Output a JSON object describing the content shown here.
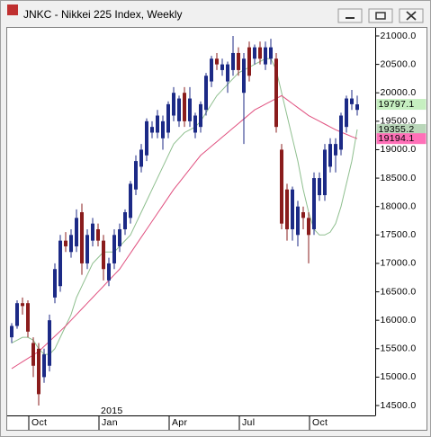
{
  "chart_data": {
    "type": "candlestick",
    "title": "JNKC - Nikkei 225 Index, Weekly",
    "categories": [
      null,
      null,
      null,
      null,
      "Oct",
      null,
      null,
      null,
      null,
      null,
      null,
      null,
      null,
      null,
      null,
      null,
      null,
      "Jan",
      null,
      null,
      null,
      null,
      null,
      null,
      null,
      null,
      null,
      null,
      null,
      null,
      "Apr",
      null,
      null,
      null,
      null,
      null,
      null,
      null,
      null,
      null,
      null,
      null,
      null,
      "Jul",
      null,
      null,
      null,
      null,
      null,
      null,
      null,
      null,
      null,
      null,
      null,
      null,
      "Oct",
      null,
      null,
      null,
      null,
      null,
      null,
      null,
      null
    ],
    "year_label": "2015",
    "year_label_at": 17,
    "open": [
      15700,
      15900,
      16300,
      16300,
      15600,
      15500,
      15000,
      15200,
      16400,
      16600,
      17400,
      17200,
      17300,
      17900,
      17000,
      17400,
      17600,
      17400,
      16700,
      17000,
      17300,
      17600,
      17800,
      18300,
      18700,
      18900,
      19300,
      19300,
      19200,
      19300,
      19600,
      19500,
      20000,
      19500,
      19300,
      19400,
      19700,
      20200,
      20600,
      20400,
      20200,
      20400,
      20700,
      20000,
      20800,
      20600,
      20800,
      20500,
      20600,
      20600,
      19000,
      18300,
      17600,
      17500,
      17900,
      17800,
      17600,
      18200,
      18200,
      18700,
      18900,
      19000,
      19400,
      19800,
      19700
    ],
    "high": [
      15950,
      16350,
      16400,
      16350,
      15700,
      15600,
      15500,
      16100,
      17000,
      17500,
      17550,
      17600,
      17950,
      18050,
      17600,
      17800,
      17700,
      17500,
      17100,
      17600,
      17700,
      17950,
      18450,
      18900,
      19100,
      19550,
      19500,
      19700,
      19600,
      19850,
      20100,
      19950,
      20100,
      20100,
      19650,
      19850,
      20350,
      20650,
      20700,
      20600,
      20550,
      21000,
      20800,
      20700,
      20900,
      20850,
      20900,
      20900,
      20950,
      20700,
      19100,
      18400,
      18350,
      18100,
      18000,
      17900,
      18600,
      18600,
      19100,
      19200,
      19200,
      19650,
      19950,
      20050,
      19950
    ],
    "low": [
      15600,
      15850,
      16100,
      15700,
      15000,
      14500,
      14900,
      15100,
      16300,
      16500,
      17200,
      17100,
      17200,
      16800,
      16900,
      17300,
      17300,
      16700,
      16600,
      16900,
      17200,
      17500,
      17700,
      18200,
      18600,
      18800,
      19200,
      19200,
      19000,
      19200,
      19500,
      19400,
      19400,
      19400,
      19200,
      19300,
      19600,
      20100,
      20400,
      20300,
      20000,
      20300,
      20300,
      19100,
      20200,
      20500,
      20500,
      20400,
      20500,
      19300,
      17600,
      17400,
      17400,
      17300,
      17600,
      17000,
      17500,
      18100,
      18100,
      18600,
      18600,
      18900,
      19300,
      19700,
      19600
    ],
    "close": [
      15900,
      16300,
      16250,
      15800,
      15200,
      14700,
      15400,
      16000,
      16900,
      17400,
      17300,
      17500,
      17800,
      17000,
      17500,
      17700,
      17400,
      16900,
      17000,
      17500,
      17600,
      17900,
      18400,
      18800,
      19000,
      19500,
      19400,
      19600,
      19500,
      19800,
      20000,
      19900,
      19500,
      19900,
      19600,
      19800,
      20300,
      20600,
      20500,
      20500,
      20500,
      20700,
      20400,
      20600,
      20300,
      20800,
      20600,
      20800,
      20800,
      19400,
      17700,
      17600,
      18300,
      18000,
      17800,
      17500,
      18500,
      18500,
      19000,
      19100,
      19100,
      19600,
      19900,
      19900,
      19797.1
    ],
    "up_color": "#1c2a86",
    "down_color": "#8a1c1c",
    "series": [
      {
        "color": "#8fbf8f",
        "values": [
          15600,
          15650,
          15700,
          15700,
          15650,
          15500,
          15400,
          15400,
          15500,
          15700,
          15900,
          16100,
          16400,
          16600,
          16800,
          17000,
          17100,
          17200,
          17200,
          17200,
          17300,
          17400,
          17500,
          17700,
          17900,
          18100,
          18300,
          18500,
          18700,
          18900,
          19100,
          19200,
          19300,
          19350,
          19400,
          19500,
          19650,
          19800,
          19950,
          20050,
          20150,
          20250,
          20350,
          20400,
          20450,
          20500,
          20550,
          20600,
          20600,
          20400,
          20000,
          19600,
          19200,
          18800,
          18300,
          17900,
          17600,
          17500,
          17500,
          17550,
          17700,
          18000,
          18400,
          18800,
          19355.2
        ]
      },
      {
        "color": "#e0507f",
        "values": [
          15150,
          15210,
          15270,
          15330,
          15390,
          15450,
          15540,
          15630,
          15720,
          15810,
          15900,
          16000,
          16100,
          16200,
          16300,
          16400,
          16500,
          16600,
          16700,
          16800,
          16900,
          17040,
          17180,
          17320,
          17460,
          17600,
          17740,
          17880,
          18020,
          18160,
          18300,
          18420,
          18540,
          18660,
          18780,
          18900,
          18980,
          19060,
          19140,
          19220,
          19300,
          19380,
          19460,
          19540,
          19620,
          19700,
          19750,
          19800,
          19850,
          19900,
          19950,
          19880,
          19810,
          19740,
          19670,
          19600,
          19550,
          19500,
          19450,
          19400,
          19350,
          19310,
          19270,
          19230,
          19194.1
        ]
      }
    ],
    "price_tags": [
      {
        "value": 19797.1,
        "color": "#c6efc0"
      },
      {
        "value": 19355.2,
        "color": "#b9d6b9"
      },
      {
        "value": 19194.1,
        "color": "#ff70b8"
      }
    ],
    "ylim": [
      14350,
      21150
    ],
    "yticks": [
      {
        "value": 14500,
        "label": "14500.0"
      },
      {
        "value": 15000,
        "label": "15000.0"
      },
      {
        "value": 15500,
        "label": "15500.0"
      },
      {
        "value": 16000,
        "label": "16000.0"
      },
      {
        "value": 16500,
        "label": "16500.0"
      },
      {
        "value": 17000,
        "label": "17000.0"
      },
      {
        "value": 17500,
        "label": "17500.0"
      },
      {
        "value": 18000,
        "label": "18000.0"
      },
      {
        "value": 18500,
        "label": "18500.0"
      },
      {
        "value": 19000,
        "label": "19000.0"
      },
      {
        "value": 19500,
        "label": "19500.0"
      },
      {
        "value": 20000,
        "label": "20000.0"
      },
      {
        "value": 20500,
        "label": "20500.0"
      },
      {
        "value": 21000,
        "label": "21000.0"
      }
    ],
    "grid": false
  }
}
